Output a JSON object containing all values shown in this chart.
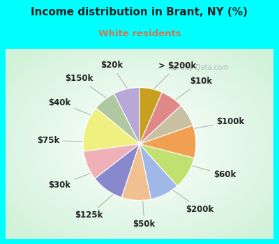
{
  "title": "Income distribution in Brant, NY (%)",
  "subtitle": "White residents",
  "title_color": "#222222",
  "subtitle_color": "#cc7755",
  "bg_outer": "#00ffff",
  "watermark": "City-Data.com",
  "labels": [
    "> $200k",
    "$10k",
    "$100k",
    "$60k",
    "$200k",
    "$50k",
    "$125k",
    "$30k",
    "$75k",
    "$40k",
    "$150k",
    "$20k"
  ],
  "values": [
    8,
    7,
    14,
    9,
    10,
    9,
    9,
    10,
    10,
    7,
    7,
    7
  ],
  "colors": [
    "#b8a8d8",
    "#b0c8a0",
    "#f0f080",
    "#f0b0b8",
    "#8888cc",
    "#f0c090",
    "#a0b8e8",
    "#c0e070",
    "#f0a050",
    "#c8c0a0",
    "#e08888",
    "#c8a020"
  ],
  "startangle": 90,
  "label_fontsize": 8.5,
  "label_color": "#222222",
  "figsize": [
    4.0,
    3.5
  ],
  "dpi": 100
}
